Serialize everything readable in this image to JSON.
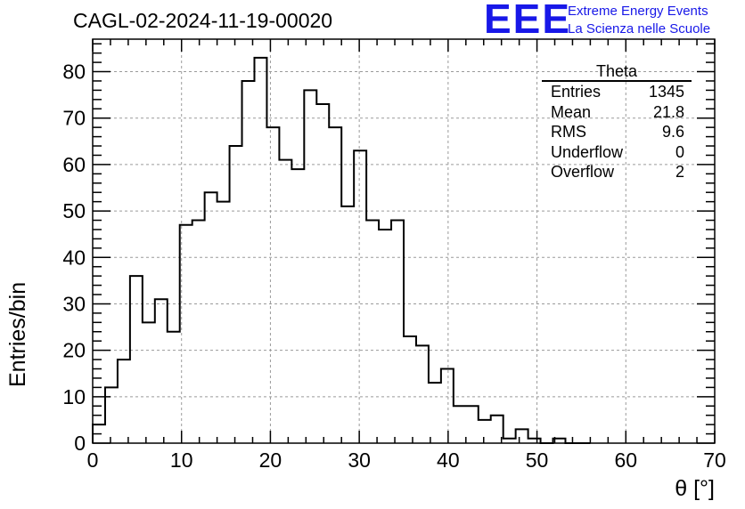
{
  "title": "CAGL-02-2024-11-19-00020",
  "logo": {
    "text": "EEE",
    "line1": "Extreme Energy Events",
    "line2": "La Scienza nelle Scuole",
    "color": "#1818e8"
  },
  "axes": {
    "xlabel": "θ [°]",
    "ylabel": "Entries/bin",
    "xlim": [
      0,
      70
    ],
    "ylim": [
      0,
      87
    ],
    "xticks": [
      "0",
      "10",
      "20",
      "30",
      "40",
      "50",
      "60",
      "70"
    ],
    "yticks": [
      "0",
      "10",
      "20",
      "30",
      "40",
      "50",
      "60",
      "70",
      "80"
    ],
    "grid": true
  },
  "stats": {
    "title": "Theta",
    "rows": [
      {
        "label": "Entries",
        "value": "1345"
      },
      {
        "label": "Mean",
        "value": "21.8"
      },
      {
        "label": "RMS",
        "value": "9.6"
      },
      {
        "label": "Underflow",
        "value": "0"
      },
      {
        "label": "Overflow",
        "value": "2"
      }
    ]
  },
  "chart_data": {
    "type": "bar",
    "bin_width": 1.4,
    "x_start": 0,
    "values": [
      4,
      12,
      18,
      36,
      26,
      31,
      24,
      47,
      48,
      54,
      52,
      64,
      78,
      83,
      68,
      61,
      59,
      76,
      73,
      68,
      51,
      63,
      48,
      46,
      48,
      23,
      21,
      13,
      16,
      8,
      8,
      5,
      6,
      1,
      3,
      1,
      0,
      1,
      0,
      0
    ],
    "title": "CAGL-02-2024-11-19-00020",
    "xlabel": "θ [°]",
    "ylabel": "Entries/bin",
    "xlim": [
      0,
      70
    ],
    "ylim": [
      0,
      87
    ],
    "grid": true,
    "line_color": "#000000"
  }
}
